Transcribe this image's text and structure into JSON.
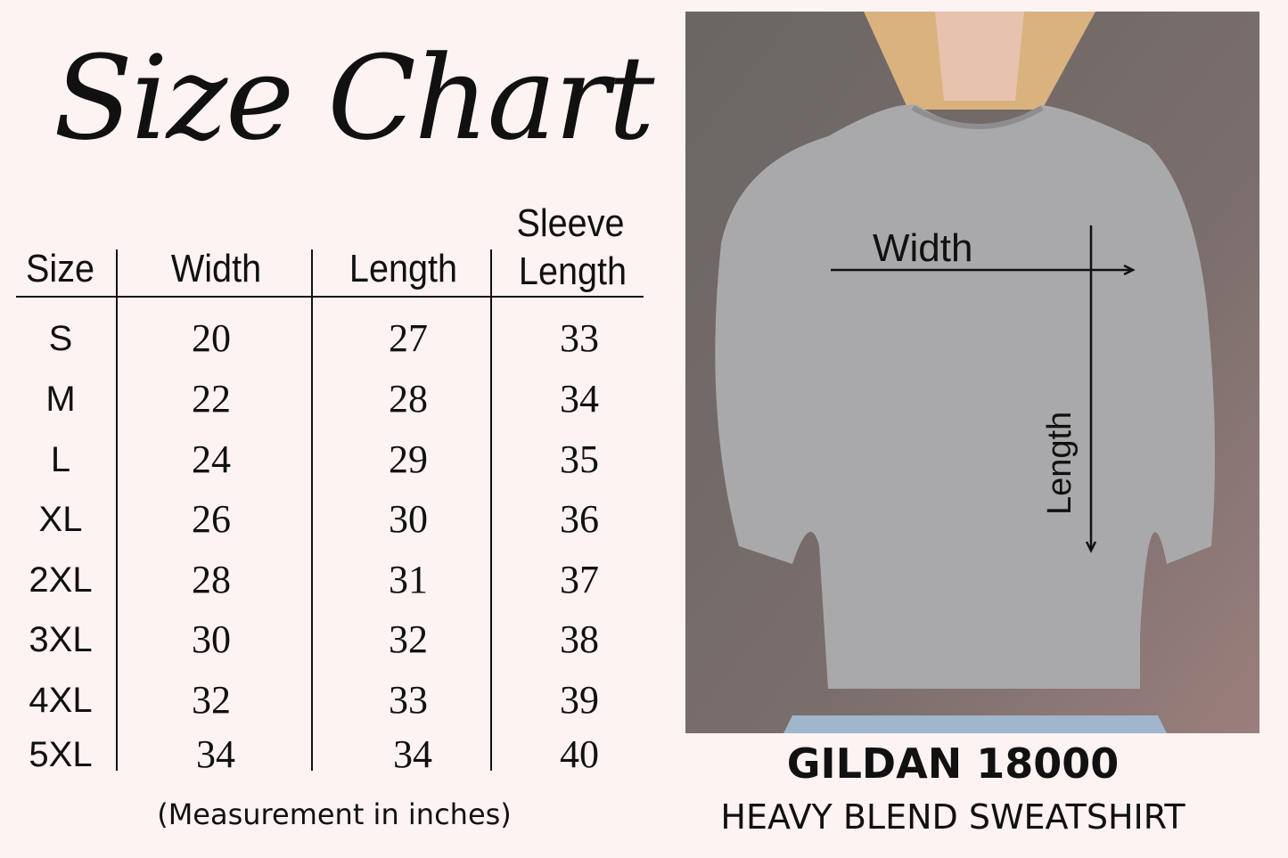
{
  "title": "Size Chart",
  "table": {
    "headers": {
      "size": "Size",
      "width": "Width",
      "length": "Length",
      "sleeve_line1": "Sleeve",
      "sleeve_line2": "Length"
    },
    "rows": [
      {
        "size": "S",
        "width": "20",
        "length": "27",
        "sleeve": "33"
      },
      {
        "size": "M",
        "width": "22",
        "length": "28",
        "sleeve": "34"
      },
      {
        "size": "L",
        "width": "24",
        "length": "29",
        "sleeve": "35"
      },
      {
        "size": "XL",
        "width": "26",
        "length": "30",
        "sleeve": "36"
      },
      {
        "size": "2XL",
        "width": "28",
        "length": "31",
        "sleeve": "37"
      },
      {
        "size": "3XL",
        "width": "30",
        "length": "32",
        "sleeve": "38"
      },
      {
        "size": "4XL",
        "width": "32",
        "length": "33",
        "sleeve": "39"
      },
      {
        "size": "5XL",
        "width": "34",
        "length": "34",
        "sleeve": "40"
      }
    ],
    "note": "(Measurement in inches)"
  },
  "photo": {
    "width_label": "Width",
    "length_label": "Length",
    "shirt_color": "#a9a9ab",
    "wall_color": "#6f6a68"
  },
  "product": {
    "brand": "GILDAN 18000",
    "model": "HEAVY BLEND SWEATSHIRT"
  }
}
